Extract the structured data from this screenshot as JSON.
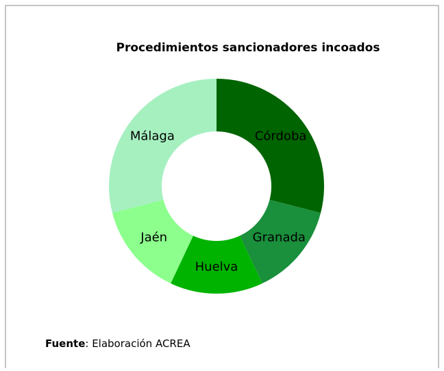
{
  "chart_data": {
    "type": "donut",
    "title": "Procedimientos sancionadores incoados",
    "categories": [
      "Córdoba",
      "Granada",
      "Huelva",
      "Jaén",
      "Málaga"
    ],
    "values": [
      29,
      14,
      14,
      14,
      29
    ],
    "colors": [
      "#006400",
      "#1a8f3c",
      "#00b300",
      "#8cff8c",
      "#a6f0c0"
    ],
    "source_label": "Fuente",
    "source_text": ": Elaboración ACREA"
  }
}
